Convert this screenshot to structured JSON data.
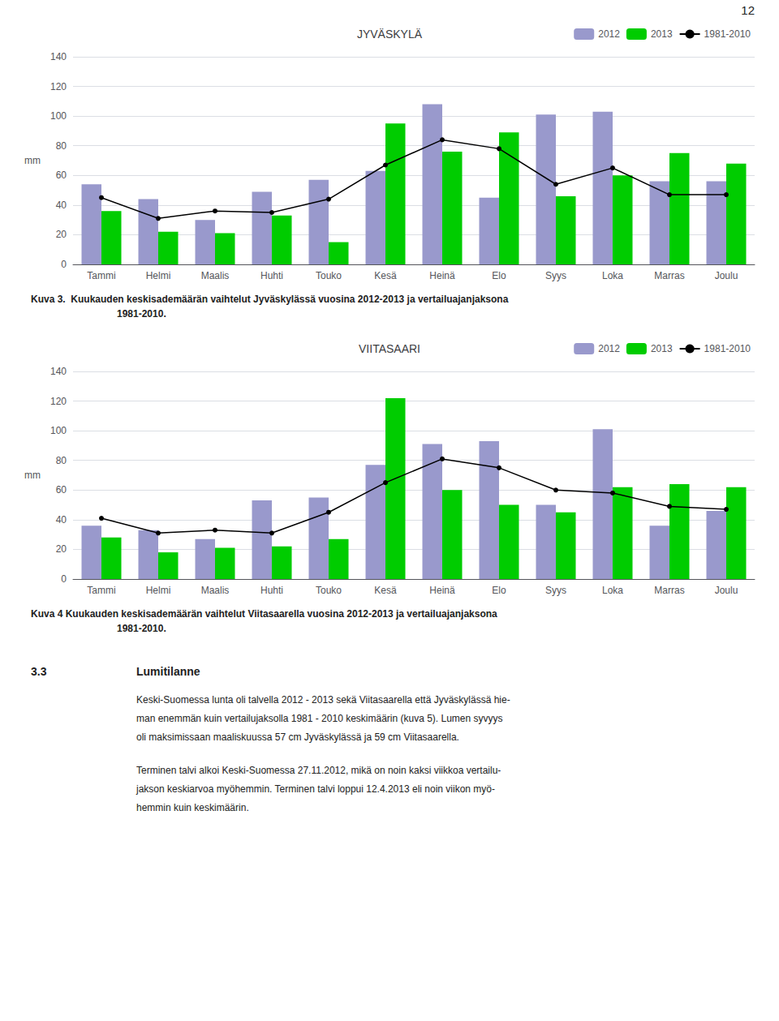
{
  "page_number": "12",
  "chart_data": [
    {
      "type": "bar",
      "title": "JYVÄSKYLÄ",
      "caption": [
        "Kuva 3.  Kuukauden keskisademäärän vaihtelut Jyväskylässä vuosina 2012-2013 ja vertailuajanjaksona",
        "1981-2010."
      ],
      "categories": [
        "Tammi",
        "Helmi",
        "Maalis",
        "Huhti",
        "Touko",
        "Kesä",
        "Heinä",
        "Elo",
        "Syys",
        "Loka",
        "Marras",
        "Joulu"
      ],
      "series": [
        {
          "name": "2012",
          "color": "#9999cc",
          "values": [
            54,
            44,
            30,
            49,
            57,
            63,
            108,
            45,
            101,
            103,
            56,
            56
          ]
        },
        {
          "name": "2013",
          "color": "#00cc00",
          "values": [
            36,
            22,
            21,
            33,
            15,
            95,
            76,
            89,
            46,
            60,
            75,
            68
          ]
        },
        {
          "name": "1981-2010",
          "type": "line",
          "color": "#000000",
          "marker": "circle",
          "values": [
            45,
            31,
            36,
            35,
            44,
            67,
            84,
            78,
            54,
            65,
            47,
            47
          ]
        }
      ],
      "ylabel": "mm",
      "ylim": [
        0,
        140
      ],
      "yticks": [
        0,
        20,
        40,
        60,
        80,
        100,
        120,
        140
      ],
      "grid": true,
      "legend": "upper right"
    },
    {
      "type": "bar",
      "title": "VIITASAARI",
      "caption": [
        "Kuva 4 Kuukauden keskisademäärän vaihtelut Viitasaarella vuosina 2012-2013 ja vertailuajanjaksona",
        "1981-2010."
      ],
      "categories": [
        "Tammi",
        "Helmi",
        "Maalis",
        "Huhti",
        "Touko",
        "Kesä",
        "Heinä",
        "Elo",
        "Syys",
        "Loka",
        "Marras",
        "Joulu"
      ],
      "series": [
        {
          "name": "2012",
          "color": "#9999cc",
          "values": [
            36,
            33,
            27,
            53,
            55,
            77,
            91,
            93,
            50,
            101,
            36,
            46
          ]
        },
        {
          "name": "2013",
          "color": "#00cc00",
          "values": [
            28,
            18,
            21,
            22,
            27,
            122,
            60,
            50,
            45,
            62,
            64,
            62
          ]
        },
        {
          "name": "1981-2010",
          "type": "line",
          "color": "#000000",
          "marker": "circle",
          "values": [
            41,
            31,
            33,
            31,
            45,
            65,
            81,
            75,
            60,
            58,
            49,
            47
          ]
        }
      ],
      "ylabel": "mm",
      "ylim": [
        0,
        140
      ],
      "yticks": [
        0,
        20,
        40,
        60,
        80,
        100,
        120,
        140
      ],
      "grid": true,
      "legend": "upper right"
    }
  ],
  "section": {
    "number": "3.3",
    "title": "Lumitilanne"
  },
  "paragraphs": [
    [
      "Keski-Suomessa lunta oli talvella 2012 - 2013 sekä Viitasaarella että Jyväskylässä hie-",
      "man enemmän kuin vertailujaksolla 1981 - 2010 keskimäärin (kuva 5). Lumen syvyys",
      "oli maksimissaan maaliskuussa 57 cm Jyväskylässä ja 59 cm Viitasaarella."
    ],
    [
      "Terminen talvi alkoi Keski-Suomessa 27.11.2012, mikä on noin kaksi viikkoa vertailu-",
      "jakson keskiarvoa myöhemmin. Terminen talvi loppui 12.4.2013 eli noin viikon myö-",
      "hemmin kuin keskimäärin."
    ]
  ]
}
